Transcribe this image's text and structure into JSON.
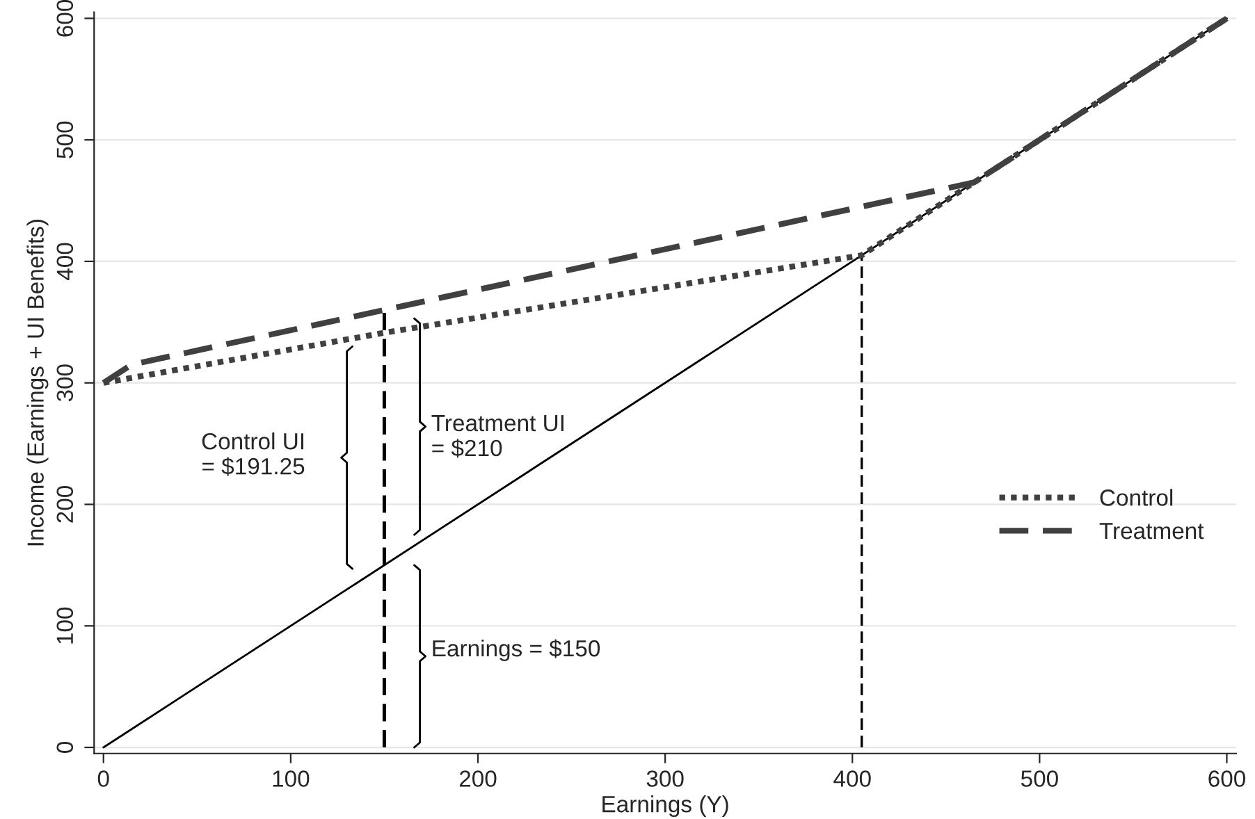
{
  "chart_data": {
    "type": "line",
    "xlabel": "Earnings (Y)",
    "ylabel": "Income (Earnings + UI Benefits)",
    "series": [
      {
        "color": "#000000",
        "line_style": "solid",
        "x": [
          0,
          600
        ],
        "values": [
          0,
          600
        ]
      },
      {
        "name": "Control",
        "color": "#404040",
        "line_style": "dotted",
        "x": [
          0,
          150,
          405,
          600
        ],
        "values": [
          300,
          341.25,
          405,
          600
        ]
      },
      {
        "name": "Treatment",
        "color": "#404040",
        "line_style": "dashed",
        "x": [
          0,
          15,
          150,
          465,
          600
        ],
        "values": [
          300,
          315,
          360,
          465,
          600
        ]
      },
      {
        "color": "#000000",
        "line_style": "dashed",
        "x": [
          150,
          150
        ],
        "values": [
          0,
          360
        ]
      },
      {
        "color": "#000000",
        "line_style": "dashed",
        "x": [
          405,
          405
        ],
        "values": [
          0,
          405
        ]
      }
    ],
    "annotations": [
      "Control UI\n= $191.25",
      "Treatment UI\n= $210",
      "Earnings = $150"
    ],
    "xlim": [
      -5,
      605
    ],
    "ylim": [
      -5,
      605
    ],
    "xticks": [
      0,
      100,
      200,
      300,
      400,
      500,
      600
    ],
    "yticks": [
      0,
      100,
      200,
      300,
      400,
      500,
      600
    ],
    "grid": "y",
    "legend": "right",
    "marker": "none"
  }
}
